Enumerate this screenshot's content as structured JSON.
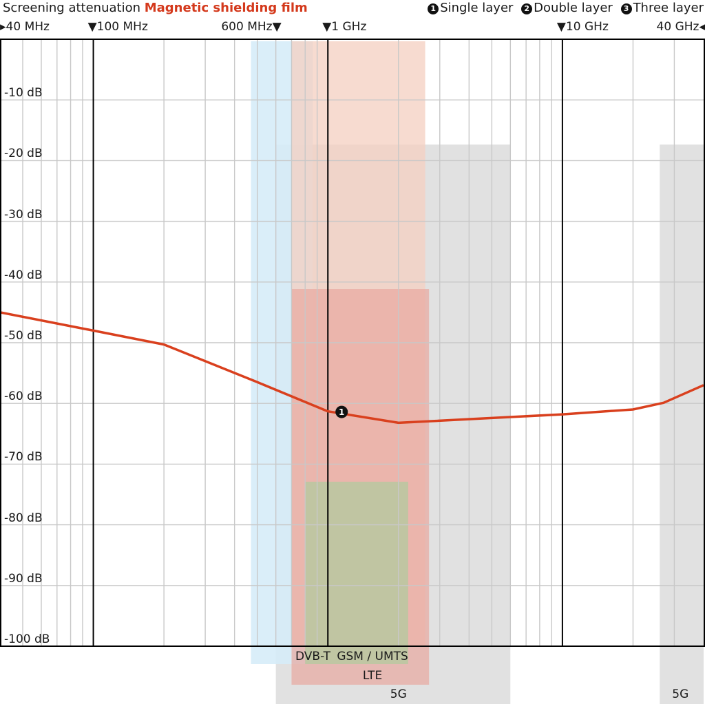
{
  "header": {
    "title": "Screening attenuation",
    "subtitle": "Magnetic shielding film",
    "legend": [
      {
        "number": "1",
        "label": "Single layer"
      },
      {
        "number": "2",
        "label": "Double layer"
      },
      {
        "number": "3",
        "label": "Three layer"
      }
    ]
  },
  "colors": {
    "series": "#d9401e",
    "title_accent": "#d4391c",
    "grid": "#c8c8c8",
    "major_line": "#000000",
    "band_dvbt": "#d6ecf8",
    "band_gsm": "#f4cfc0",
    "band_lte": "#e8a8a0",
    "band_5g": "#dcdcdc",
    "band_gsm_overlap": "#b9c8a0"
  },
  "chart_data": {
    "type": "line",
    "title": "Screening attenuation",
    "subtitle": "Magnetic shielding film",
    "xscale": "log",
    "xunit": "MHz",
    "xlim": [
      40,
      40000
    ],
    "ylim": [
      -100,
      0
    ],
    "grid": true,
    "legend_position": "top-right",
    "x_markers": [
      {
        "value": 40,
        "label": "40 MHz",
        "marker": "right-arrow",
        "side": "right"
      },
      {
        "value": 100,
        "label": "100 MHz",
        "marker": "down-arrow",
        "side": "right"
      },
      {
        "value": 600,
        "label": "600 MHz",
        "marker": "down-arrow",
        "side": "left"
      },
      {
        "value": 1000,
        "label": "1 GHz",
        "marker": "down-arrow",
        "side": "right"
      },
      {
        "value": 10000,
        "label": "10 GHz",
        "marker": "down-arrow",
        "side": "right"
      },
      {
        "value": 40000,
        "label": "40 GHz",
        "marker": "left-arrow",
        "side": "left"
      }
    ],
    "major_lines": [
      100,
      1000,
      10000
    ],
    "y_ticks": [
      {
        "value": -10,
        "label": "-10 dB"
      },
      {
        "value": -20,
        "label": "-20 dB"
      },
      {
        "value": -30,
        "label": "-30 dB"
      },
      {
        "value": -40,
        "label": "-40 dB"
      },
      {
        "value": -50,
        "label": "-50 dB"
      },
      {
        "value": -60,
        "label": "-60 dB"
      },
      {
        "value": -70,
        "label": "-70 dB"
      },
      {
        "value": -80,
        "label": "-80 dB"
      },
      {
        "value": -90,
        "label": "-90 dB"
      },
      {
        "value": -100,
        "label": "-100 dB"
      }
    ],
    "bands": [
      {
        "label": "DVB-T",
        "from": 470,
        "to": 862
      },
      {
        "label": "GSM / UMTS",
        "from": 700,
        "to": 2600,
        "overlap_from": 800,
        "overlap_to": 2200
      },
      {
        "label": "LTE",
        "from": 700,
        "to": 2700
      },
      {
        "label": "5G",
        "from": 600,
        "to": 6000
      },
      {
        "label": "5G",
        "from": 26000,
        "to": 40000
      }
    ],
    "series": [
      {
        "marker_label": "1",
        "x": [
          40,
          100,
          200,
          500,
          1000,
          2000,
          5000,
          10000,
          20000,
          27000,
          40000
        ],
        "y": [
          -45,
          -48,
          -50.3,
          -56.5,
          -61.3,
          -63.2,
          -62.4,
          -61.8,
          -61,
          -59.9,
          -57
        ]
      }
    ]
  }
}
